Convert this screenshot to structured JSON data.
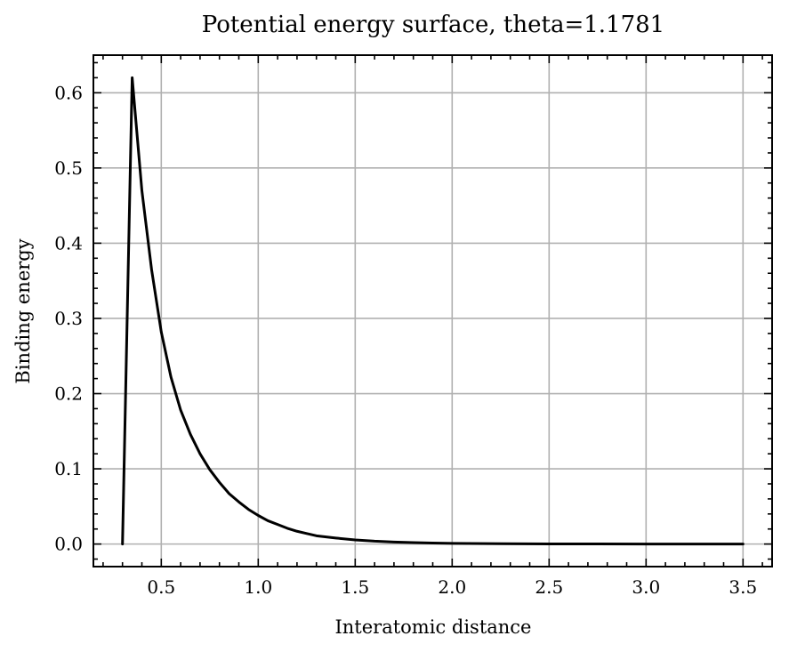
{
  "chart_data": {
    "type": "line",
    "title": "Potential energy surface, theta=1.1781",
    "xlabel": "Interatomic distance",
    "ylabel": "Binding energy",
    "xlim": [
      0.15,
      3.65
    ],
    "ylim": [
      -0.03,
      0.65
    ],
    "x_ticks": [
      0.5,
      1.0,
      1.5,
      2.0,
      2.5,
      3.0,
      3.5
    ],
    "x_tick_labels": [
      "0.5",
      "1.0",
      "1.5",
      "2.0",
      "2.5",
      "3.0",
      "3.5"
    ],
    "y_ticks": [
      0.0,
      0.1,
      0.2,
      0.3,
      0.4,
      0.5,
      0.6
    ],
    "y_tick_labels": [
      "0.0",
      "0.1",
      "0.2",
      "0.3",
      "0.4",
      "0.5",
      "0.6"
    ],
    "x_minor_step": 0.1,
    "y_minor_step": 0.02,
    "grid": true,
    "legend": "none",
    "line_color": "#000000",
    "grid_color": "#b0b0b0",
    "series": [
      {
        "x": [
          0.3,
          0.35,
          0.4,
          0.45,
          0.5,
          0.55,
          0.6,
          0.65,
          0.7,
          0.75,
          0.8,
          0.85,
          0.9,
          0.95,
          1.0,
          1.05,
          1.1,
          1.15,
          1.2,
          1.25,
          1.3,
          1.4,
          1.5,
          1.6,
          1.7,
          1.8,
          1.9,
          2.0,
          2.25,
          2.5,
          2.75,
          3.0,
          3.25,
          3.5
        ],
        "y": [
          0.0,
          0.62,
          0.47,
          0.365,
          0.282,
          0.222,
          0.178,
          0.146,
          0.12,
          0.099,
          0.082,
          0.067,
          0.056,
          0.046,
          0.038,
          0.031,
          0.026,
          0.021,
          0.017,
          0.014,
          0.011,
          0.008,
          0.0055,
          0.0038,
          0.0027,
          0.0019,
          0.0013,
          0.0009,
          0.0004,
          0.0002,
          0.0001,
          5e-05,
          2e-05,
          0.0
        ]
      }
    ]
  }
}
